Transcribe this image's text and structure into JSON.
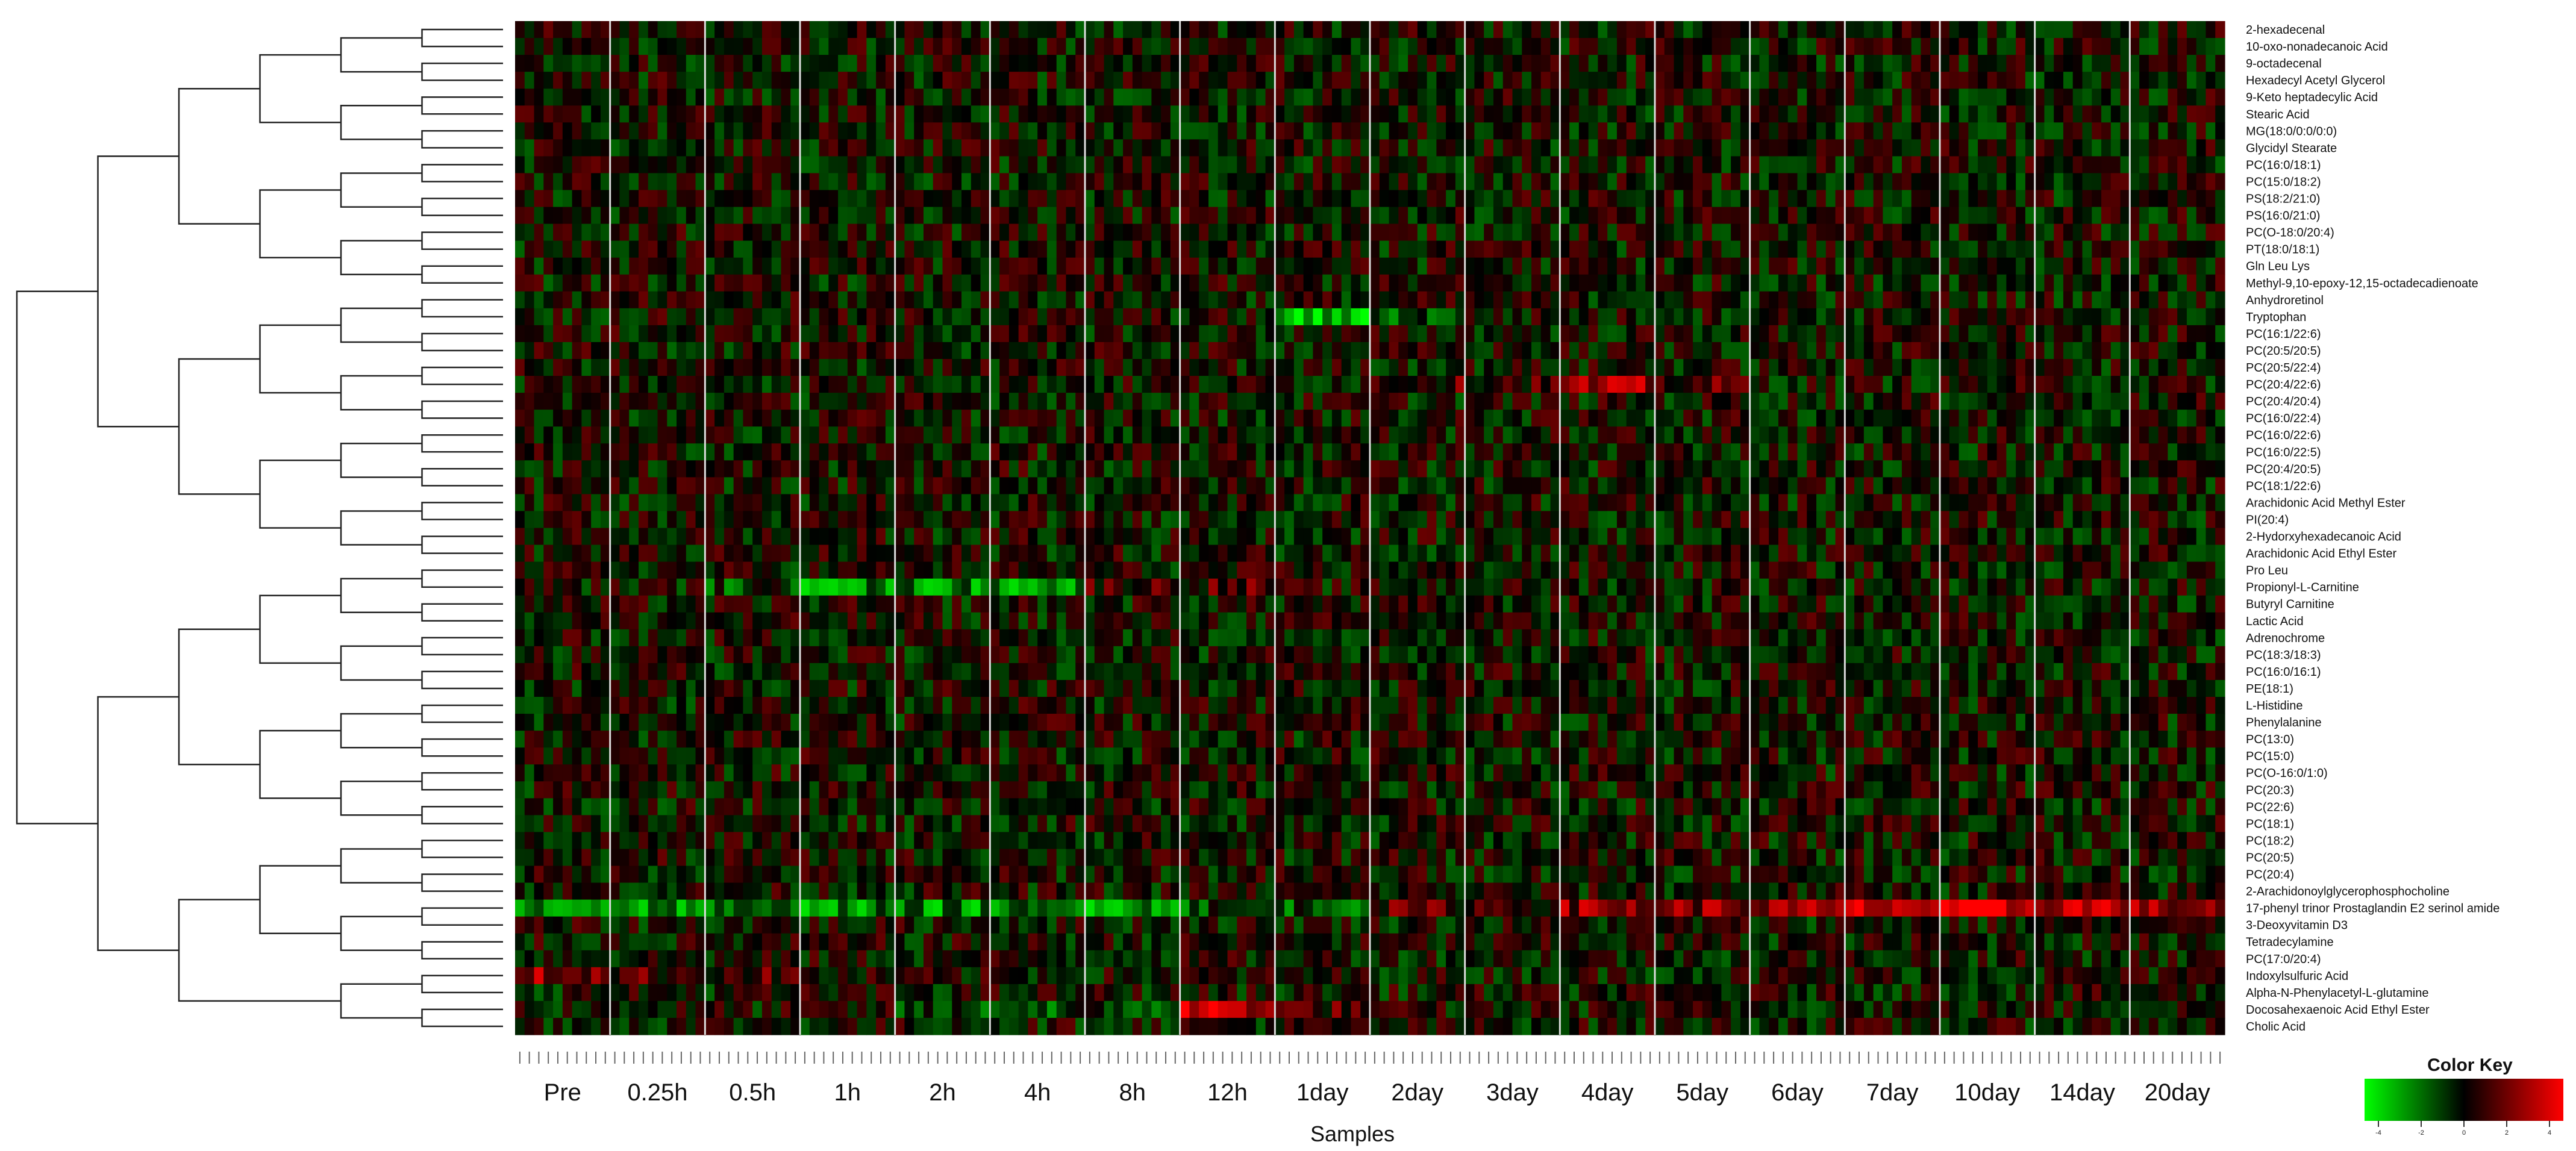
{
  "chart_data": {
    "type": "heatmap",
    "xlabel": "Samples",
    "groups": [
      "Pre",
      "0.25h",
      "0.5h",
      "1h",
      "2h",
      "4h",
      "8h",
      "12h",
      "1day",
      "2day",
      "3day",
      "4day",
      "5day",
      "6day",
      "7day",
      "10day",
      "14day",
      "20day"
    ],
    "group_sample_counts": [
      10,
      10,
      10,
      10,
      10,
      10,
      10,
      10,
      10,
      10,
      10,
      10,
      10,
      10,
      10,
      10,
      10,
      10
    ],
    "rows": [
      "2-hexadecenal",
      "10-oxo-nonadecanoic Acid",
      "9-octadecenal",
      "Hexadecyl Acetyl Glycerol",
      "9-Keto heptadecylic Acid",
      "Stearic Acid",
      "MG(18:0/0:0/0:0)",
      "Glycidyl Stearate",
      "PC(16:0/18:1)",
      "PC(15:0/18:2)",
      "PS(18:2/21:0)",
      "PS(16:0/21:0)",
      "PC(O-18:0/20:4)",
      "PT(18:0/18:1)",
      "Gln Leu Lys",
      "Methyl-9,10-epoxy-12,15-octadecadienoate",
      "Anhydroretinol",
      "Tryptophan",
      "PC(16:1/22:6)",
      "PC(20:5/20:5)",
      "PC(20:5/22:4)",
      "PC(20:4/22:6)",
      "PC(20:4/20:4)",
      "PC(16:0/22:4)",
      "PC(16:0/22:6)",
      "PC(16:0/22:5)",
      "PC(20:4/20:5)",
      "PC(18:1/22:6)",
      "Arachidonic Acid Methyl Ester",
      "PI(20:4)",
      "2-Hydorxyhexadecanoic Acid",
      "Arachidonic Acid Ethyl Ester",
      "Pro Leu",
      "Propionyl-L-Carnitine",
      "Butyryl Carnitine",
      "Lactic Acid",
      "Adrenochrome",
      "PC(18:3/18:3)",
      "PC(16:0/16:1)",
      "PE(18:1)",
      "L-Histidine",
      "Phenylalanine",
      "PC(13:0)",
      "PC(15:0)",
      "PC(O-16:0/1:0)",
      "PC(20:3)",
      "PC(22:6)",
      "PC(18:1)",
      "PC(18:2)",
      "PC(20:5)",
      "PC(20:4)",
      "2-Arachidonoylglycerophosphocholine",
      "17-phenyl trinor Prostaglandin E2 serinol amide",
      "3-Deoxyvitamin D3",
      "Tetradecylamine",
      "PC(17:0/20:4)",
      "Indoxylsulfuric Acid",
      "Alpha-N-Phenylacetyl-L-glutamine",
      "Docosahexaenoic Acid Ethyl Ester",
      "Cholic Acid"
    ],
    "color_scale": {
      "low": "#00ff00",
      "mid": "#000000",
      "high": "#ff0000",
      "min": -4,
      "max": 4
    },
    "row_group_trends": {
      "17-phenyl trinor Prostaglandin E2 serinol amide": [
        -2,
        -2,
        -2,
        -2,
        -2,
        -2,
        -2,
        -1,
        -1,
        1,
        1,
        2,
        2,
        2,
        3,
        3,
        3,
        2
      ],
      "Docosahexaenoic Acid Ethyl Ester": [
        0,
        0,
        0,
        0,
        -1,
        -1,
        -1,
        3,
        1,
        0,
        0,
        0,
        0,
        0,
        0,
        0,
        0,
        0
      ],
      "Tryptophan": [
        0,
        0,
        0,
        0,
        0,
        0,
        0,
        0,
        -3,
        -1,
        0,
        0,
        0,
        0,
        0,
        0,
        0,
        0
      ],
      "Propionyl-L-Carnitine": [
        0,
        0,
        -1,
        -2,
        -2,
        -2,
        1,
        1,
        0,
        0,
        0,
        0,
        0,
        0,
        0,
        0,
        0,
        0
      ],
      "Indoxylsulfuric Acid": [
        2,
        1,
        1,
        0,
        0,
        0,
        0,
        0,
        0,
        0,
        0,
        0,
        0,
        0,
        0,
        0,
        0,
        0
      ],
      "PC(20:4/22:6)": [
        0,
        0,
        0,
        0,
        0,
        0,
        0,
        0,
        0,
        1,
        1,
        2,
        1,
        0,
        0,
        0,
        0,
        0
      ]
    }
  },
  "color_key": {
    "title": "Color Key",
    "ticks": [
      "-4",
      "-2",
      "0",
      "2",
      "4"
    ]
  }
}
